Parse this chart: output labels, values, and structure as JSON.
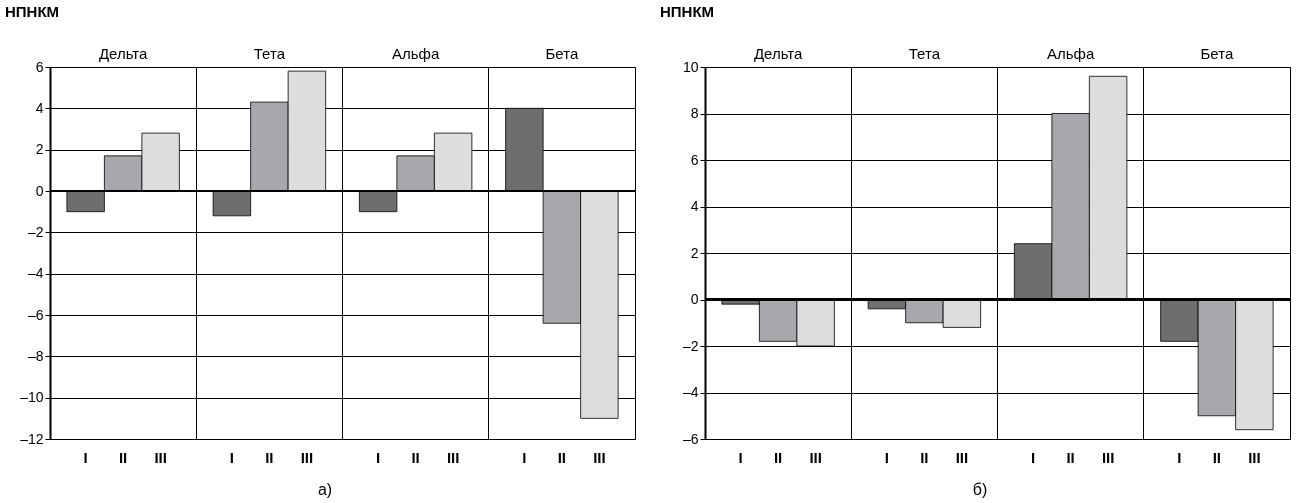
{
  "chart_data": [
    {
      "type": "bar",
      "title": "НПНКМ",
      "categories": [
        "Дельта",
        "Тета",
        "Альфа",
        "Бета"
      ],
      "series": [
        {
          "name": "I",
          "color": "#6e6e70",
          "values": [
            -1,
            -1.2,
            -1,
            4
          ]
        },
        {
          "name": "II",
          "color": "#a7a8ab",
          "values": [
            1.7,
            4.3,
            1.7,
            -6.4
          ]
        },
        {
          "name": "III",
          "color": "#dcdddf",
          "values": [
            2.8,
            5.8,
            2.8,
            -11
          ]
        }
      ],
      "ylim": [
        -12,
        6
      ],
      "yticks": [
        {
          "value": -12,
          "label": "–12"
        },
        {
          "value": -10,
          "label": "–10"
        },
        {
          "value": -8,
          "label": "–8"
        },
        {
          "value": -6,
          "label": "–6"
        },
        {
          "value": -4,
          "label": "–4"
        },
        {
          "value": -2,
          "label": "–2"
        },
        0,
        2,
        4,
        6
      ],
      "grid": true,
      "annotations": [
        "а)"
      ]
    },
    {
      "type": "bar",
      "title": "НПНКМ",
      "categories": [
        "Дельта",
        "Тета",
        "Альфа",
        "Бета"
      ],
      "series": [
        {
          "name": "I",
          "color": "#6e6e70",
          "values": [
            -0.2,
            -0.4,
            2.4,
            -1.8
          ]
        },
        {
          "name": "II",
          "color": "#a7a8ab",
          "values": [
            -1.8,
            -1,
            8,
            -5
          ]
        },
        {
          "name": "III",
          "color": "#dcdddf",
          "values": [
            -2,
            -1.2,
            9.6,
            -5.6
          ]
        }
      ],
      "ylim": [
        -6,
        10
      ],
      "yticks": [
        {
          "value": -6,
          "label": "–6"
        },
        {
          "value": -4,
          "label": "–4"
        },
        {
          "value": -2,
          "label": "–2"
        },
        0,
        2,
        4,
        6,
        8,
        10
      ],
      "grid": true,
      "annotations": [
        "б)"
      ]
    }
  ]
}
